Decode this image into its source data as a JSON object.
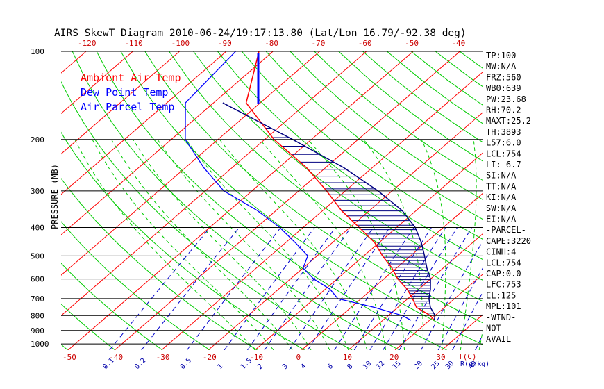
{
  "chart_data": {
    "type": "line",
    "title": "AIRS SkewT Diagram 2010-06-24/19:17:13.80 (Lat/Lon 16.79/-92.38 deg)",
    "ylabel": "PRESSURE (MB)",
    "x_bottom_unit": "T(C)",
    "mixing_ratio_unit": "R(g/kg)",
    "pressure_ticks": [
      "100",
      "200",
      "300",
      "400",
      "500",
      "600",
      "700",
      "800",
      "900",
      "1000"
    ],
    "pressure_tick_values": [
      100,
      200,
      300,
      400,
      500,
      600,
      700,
      800,
      900,
      1000
    ],
    "pressure_range": [
      1050,
      100
    ],
    "temp_range_bottom": [
      -55,
      35
    ],
    "bottom_temp_ticks": [
      "-50",
      "-40",
      "-30",
      "-20",
      "-10",
      "0",
      "10",
      "20",
      "30"
    ],
    "bottom_temp_values": [
      -50,
      -40,
      -30,
      -20,
      -10,
      0,
      10,
      20,
      30
    ],
    "top_temp_ticks": [
      "-120",
      "-110",
      "-100",
      "-90",
      "-80",
      "-70",
      "-60",
      "-50",
      "-40"
    ],
    "top_temp_values": [
      -120,
      -110,
      -100,
      -90,
      -80,
      -70,
      -60,
      -50,
      -40
    ],
    "mixing_ratio_labels": [
      "0.1",
      "0.2",
      "0.5",
      "1",
      "1.5",
      "2",
      "3",
      "4",
      "6",
      "8",
      "10",
      "12",
      "15",
      "20",
      "25",
      "30",
      "40"
    ],
    "mixing_ratio_values": [
      0.1,
      0.2,
      0.5,
      1,
      1.5,
      2,
      3,
      4,
      6,
      8,
      10,
      12,
      15,
      20,
      25,
      30,
      40
    ],
    "legend": [
      "Ambient Air Temp",
      "Dew Point Temp",
      "Air Parcel Temp"
    ],
    "series": [
      {
        "name": "Ambient Air Temp",
        "color": "#ff0000",
        "points": [
          [
            100,
            -83
          ],
          [
            150,
            -73
          ],
          [
            200,
            -58
          ],
          [
            250,
            -44
          ],
          [
            300,
            -34
          ],
          [
            350,
            -26
          ],
          [
            400,
            -18
          ],
          [
            450,
            -11
          ],
          [
            500,
            -6
          ],
          [
            550,
            -1
          ],
          [
            600,
            3
          ],
          [
            650,
            7.5
          ],
          [
            700,
            11
          ],
          [
            750,
            14
          ],
          [
            800,
            19
          ],
          [
            830,
            21
          ]
        ]
      },
      {
        "name": "Dew Point Temp",
        "color": "#0000ff",
        "points": [
          [
            100,
            -88
          ],
          [
            150,
            -86
          ],
          [
            200,
            -77
          ],
          [
            250,
            -66
          ],
          [
            300,
            -56
          ],
          [
            350,
            -44
          ],
          [
            400,
            -35
          ],
          [
            450,
            -28
          ],
          [
            500,
            -22
          ],
          [
            550,
            -20
          ],
          [
            600,
            -15
          ],
          [
            650,
            -9
          ],
          [
            700,
            -5
          ],
          [
            750,
            5
          ],
          [
            800,
            13
          ],
          [
            830,
            16
          ]
        ]
      },
      {
        "name": "Air Parcel Temp",
        "color": "#0000ff",
        "points": [
          [
            150,
            -78
          ],
          [
            200,
            -54
          ],
          [
            250,
            -36
          ],
          [
            300,
            -23
          ],
          [
            350,
            -13
          ],
          [
            400,
            -6
          ],
          [
            450,
            -1
          ],
          [
            500,
            3
          ],
          [
            550,
            6.5
          ],
          [
            600,
            10
          ],
          [
            650,
            12.5
          ],
          [
            700,
            14.5
          ],
          [
            750,
            17
          ],
          [
            800,
            20
          ],
          [
            830,
            21
          ]
        ]
      }
    ],
    "indices": [
      "TP:100",
      "MW:N/A",
      "FRZ:560",
      "WB0:639",
      "PW:23.68",
      "RH:70.2",
      "MAXT:25.2",
      "TH:3893",
      "L57:6.0",
      "LCL:754",
      "LI:-6.7",
      "SI:N/A",
      "TT:N/A",
      "KI:N/A",
      "SW:N/A",
      "EI:N/A",
      "-PARCEL-",
      "CAPE:3220",
      "CINH:4",
      "LCL:754",
      "CAP:0.0",
      "LFC:753",
      "EL:125",
      "MPL:101",
      "-WIND-",
      "NOT",
      "AVAIL"
    ],
    "colors": {
      "isotherm": "#ff0000",
      "dry_adiabat": "#00cc00",
      "mixing_ratio": "#0000cc",
      "moist_adiabat": "#00cc00",
      "isobar": "#000000",
      "cape_hatch": "#000080"
    }
  }
}
